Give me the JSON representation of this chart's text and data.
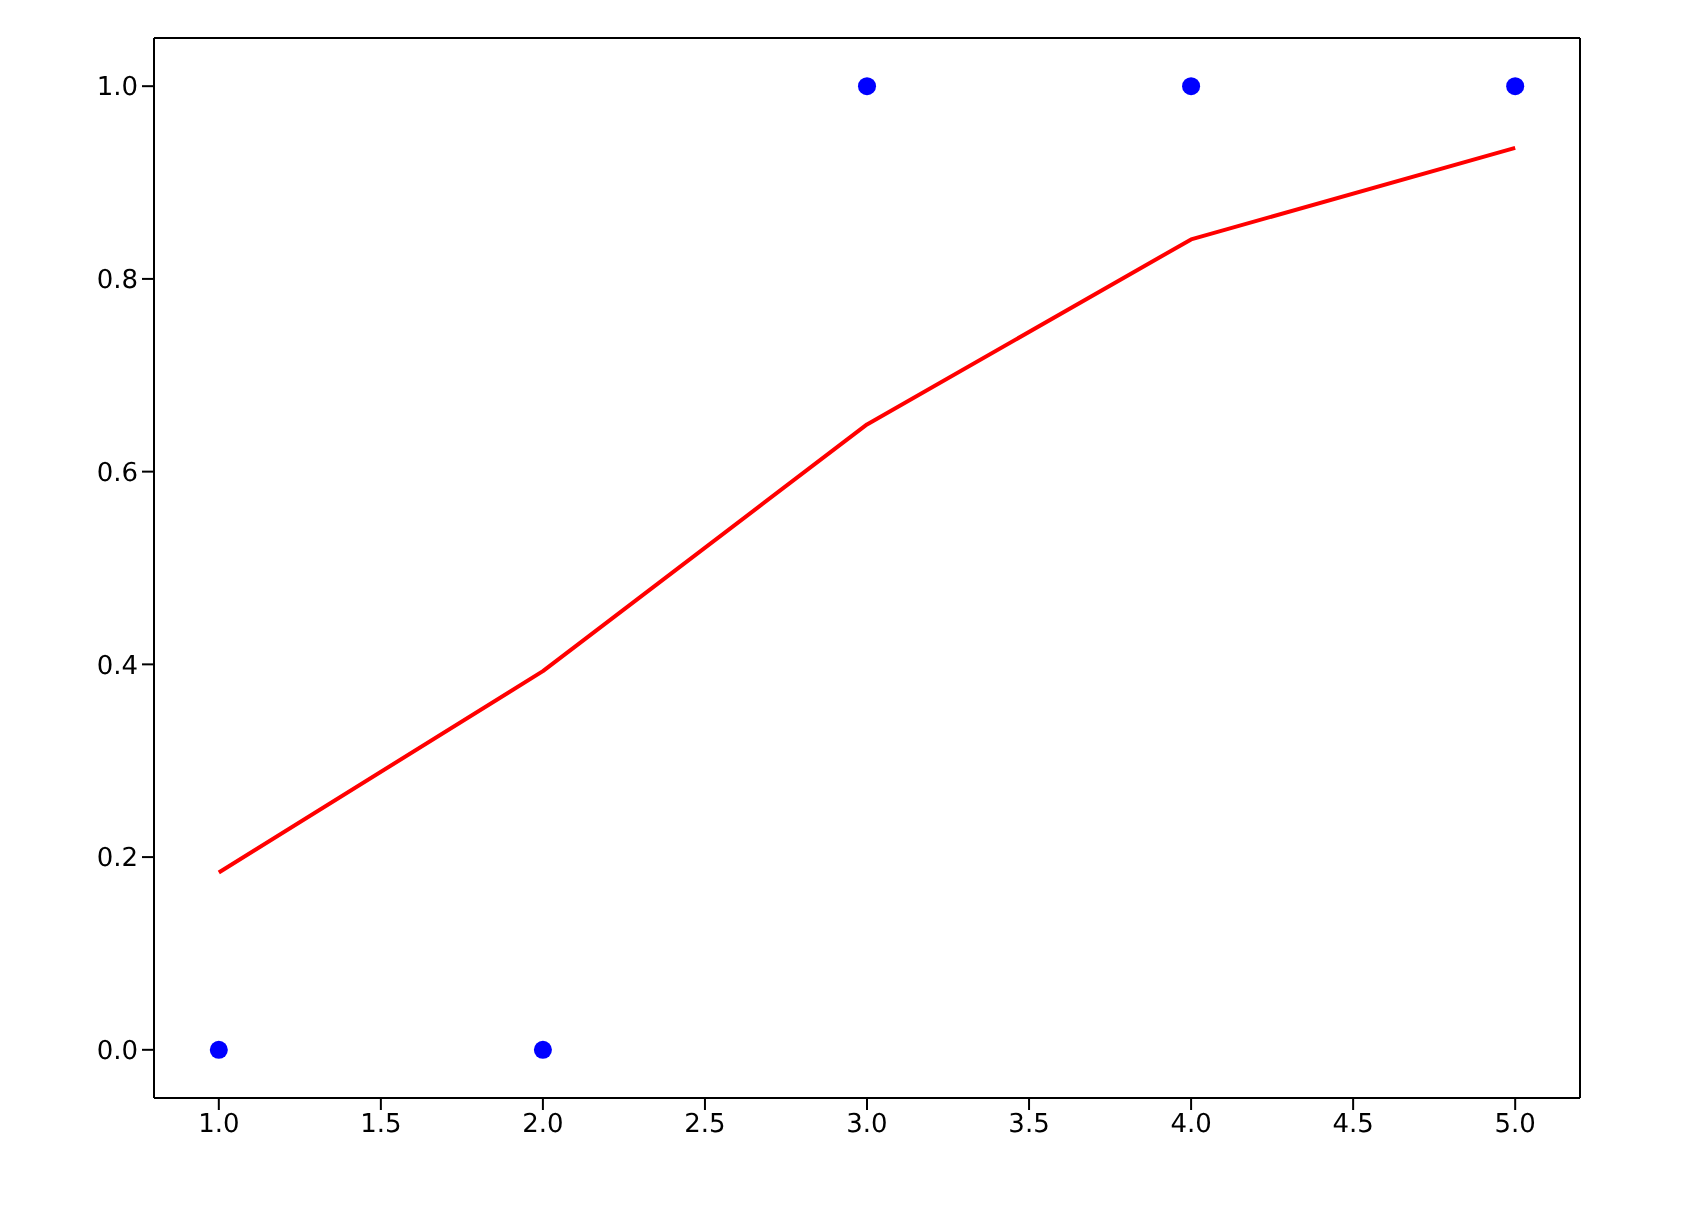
{
  "chart_data": {
    "type": "scatter",
    "xlim": [
      0.8,
      5.2
    ],
    "xticks": [
      {
        "value": 1,
        "label": "1.0"
      },
      {
        "value": 1.5,
        "label": "1.5"
      },
      {
        "value": 2,
        "label": "2.0"
      },
      {
        "value": 2.5,
        "label": "2.5"
      },
      {
        "value": 3,
        "label": "3.0"
      },
      {
        "value": 3.5,
        "label": "3.5"
      },
      {
        "value": 4,
        "label": "4.0"
      },
      {
        "value": 4.5,
        "label": "4.5"
      },
      {
        "value": 5,
        "label": "5.0"
      }
    ],
    "ylim": [
      -0.05,
      1.05
    ],
    "yticks": [
      {
        "value": 0,
        "label": "0.0"
      },
      {
        "value": 0.2,
        "label": "0.2"
      },
      {
        "value": 0.4,
        "label": "0.4"
      },
      {
        "value": 0.6,
        "label": "0.6"
      },
      {
        "value": 0.8,
        "label": "0.8"
      },
      {
        "value": 1,
        "label": "1.0"
      }
    ],
    "grid": false,
    "legend": false,
    "series": [
      {
        "color": "#0000ff",
        "marker": "circle",
        "x": [
          1,
          2,
          3,
          4,
          5
        ],
        "values": [
          0,
          0,
          1,
          1,
          1
        ]
      },
      {
        "type": "line",
        "color": "#ff0000",
        "marker": "none",
        "line_style": "solid",
        "x": [
          1,
          2,
          3,
          4,
          5
        ],
        "values": [
          0.184,
          0.393,
          0.649,
          0.841,
          0.936
        ]
      }
    ]
  }
}
